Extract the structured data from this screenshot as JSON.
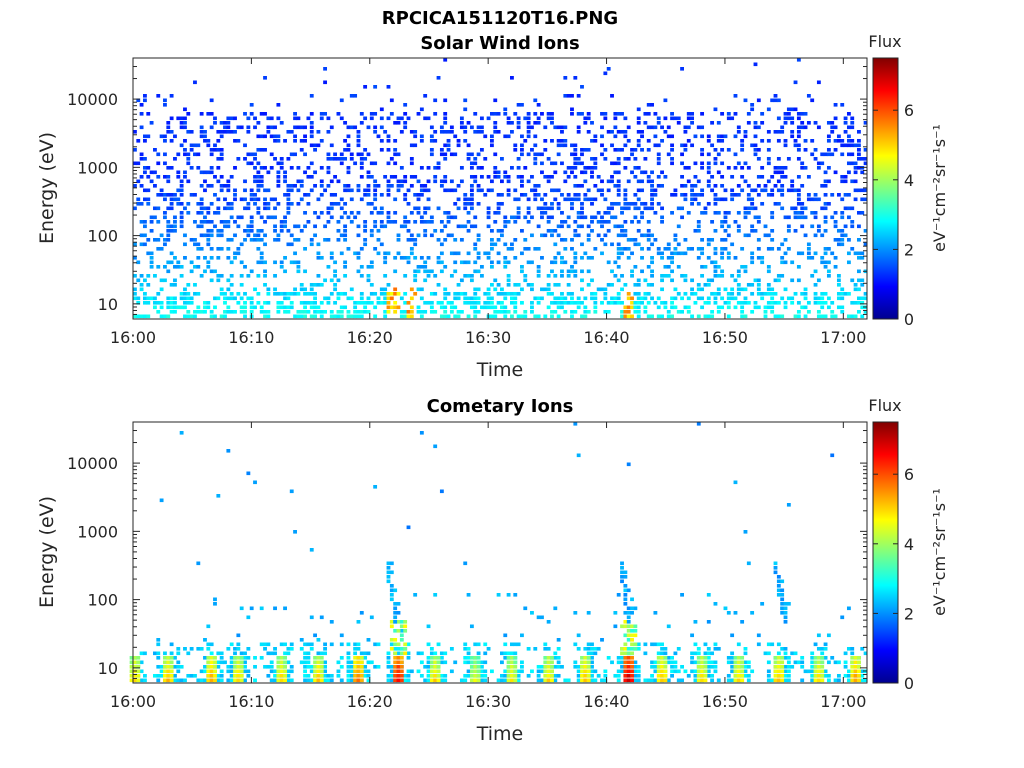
{
  "figure_title": "RPCICA151120T16.PNG",
  "chart_data": [
    {
      "type": "heatmap",
      "title": "Solar Wind Ions",
      "xlabel": "Time",
      "ylabel": "Energy (eV)",
      "x_ticks": [
        "16:00",
        "16:10",
        "16:20",
        "16:30",
        "16:40",
        "16:50",
        "17:00"
      ],
      "x_range_min": [
        0,
        62
      ],
      "y_scale": "log",
      "y_ticks": [
        "10",
        "100",
        "1000",
        "10000"
      ],
      "y_range": [
        6,
        40000
      ],
      "colorbar": {
        "title": "Flux",
        "label": "eV⁻¹cm⁻²sr⁻¹s⁻¹",
        "ticks": [
          "0",
          "2",
          "4",
          "6"
        ],
        "range": [
          0,
          7.5
        ]
      },
      "activity_times_min": [
        22,
        23.5,
        41.8
      ],
      "typical_level": {
        "high_energy": 1.3,
        "low_energy": 2.9
      }
    },
    {
      "type": "heatmap",
      "title": "Cometary Ions",
      "xlabel": "Time",
      "ylabel": "Energy (eV)",
      "x_ticks": [
        "16:00",
        "16:10",
        "16:20",
        "16:30",
        "16:40",
        "16:50",
        "17:00"
      ],
      "x_range_min": [
        0,
        62
      ],
      "y_scale": "log",
      "y_ticks": [
        "10",
        "100",
        "1000",
        "10000"
      ],
      "y_range": [
        6,
        40000
      ],
      "colorbar": {
        "title": "Flux",
        "label": "eV⁻¹cm⁻²sr⁻¹s⁻¹",
        "ticks": [
          "0",
          "2",
          "4",
          "6"
        ],
        "range": [
          0,
          7.5
        ]
      },
      "low_energy_bursts_min": [
        0,
        3,
        6.5,
        9,
        12.5,
        15.5,
        19,
        22.3,
        25.5,
        28.8,
        32,
        35,
        38.3,
        41.8,
        44.8,
        48,
        51.2,
        54.5,
        57.8,
        61
      ],
      "burst_peak_levels": [
        5.0,
        5.2,
        5.3,
        5.0,
        5.0,
        5.1,
        5.8,
        6.6,
        5.0,
        4.6,
        4.8,
        5.0,
        5.2,
        6.9,
        5.2,
        5.0,
        5.0,
        5.2,
        5.0,
        5.4
      ],
      "dispersion_features_min": [
        21.8,
        41.5,
        54.6
      ]
    }
  ]
}
